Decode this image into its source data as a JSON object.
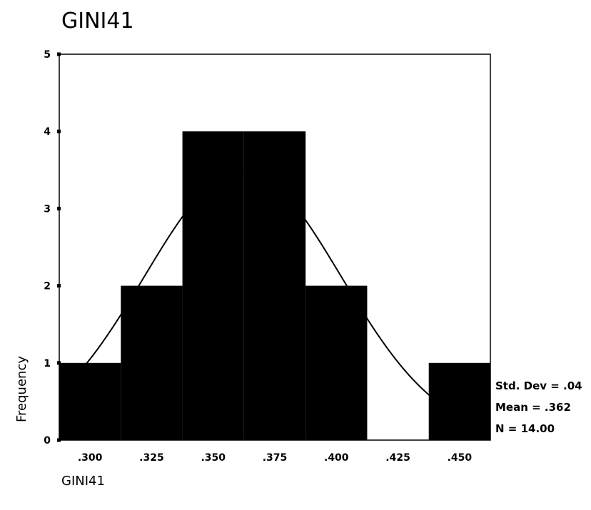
{
  "chart_data": {
    "type": "bar",
    "title": "GINI41",
    "xlabel": "GINI41",
    "ylabel": "Frequency",
    "x_ticks": [
      ".300",
      ".325",
      ".350",
      ".375",
      ".400",
      ".425",
      ".450"
    ],
    "x_tick_values": [
      0.3,
      0.325,
      0.35,
      0.375,
      0.4,
      0.425,
      0.45
    ],
    "xlim": [
      0.2875,
      0.4625
    ],
    "ylim": [
      0,
      5
    ],
    "y_ticks": [
      0,
      1,
      2,
      3,
      4,
      5
    ],
    "bins": [
      {
        "center": 0.3,
        "count": 1
      },
      {
        "center": 0.325,
        "count": 2
      },
      {
        "center": 0.35,
        "count": 4
      },
      {
        "center": 0.375,
        "count": 4
      },
      {
        "center": 0.4,
        "count": 2
      },
      {
        "center": 0.425,
        "count": 0
      },
      {
        "center": 0.45,
        "count": 1
      }
    ],
    "bin_width": 0.025,
    "bar_color": "#000000",
    "normal_curve": {
      "mean": 0.362,
      "std_dev": 0.04,
      "n": 14
    },
    "legend": {
      "std_dev": "Std. Dev = .04",
      "mean": "Mean = .362",
      "n": "N = 14.00"
    }
  }
}
